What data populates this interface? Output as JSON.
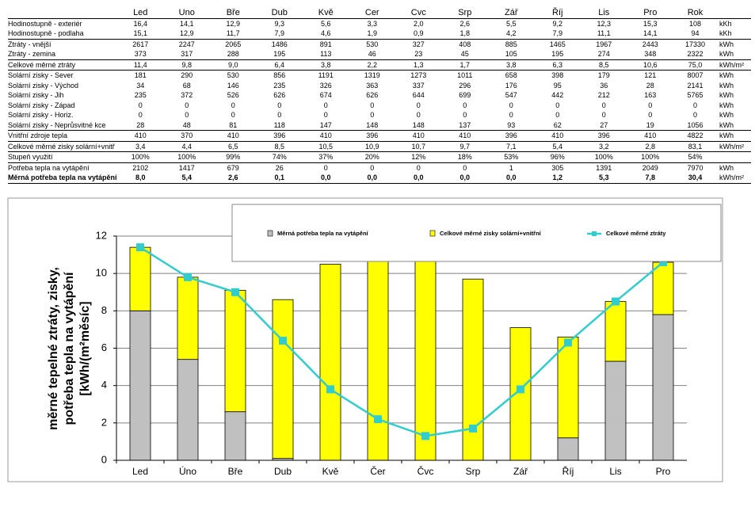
{
  "table": {
    "header": [
      "Led",
      "Uno",
      "Bře",
      "Dub",
      "Kvě",
      "Cer",
      "Cvc",
      "Srp",
      "Zář",
      "Říj",
      "Lis",
      "Pro",
      "Rok"
    ],
    "rows": [
      {
        "label": "Hodinostupně - exteriér",
        "cells": [
          "16,4",
          "14,1",
          "12,9",
          "9,3",
          "5,6",
          "3,3",
          "2,0",
          "2,6",
          "5,5",
          "9,2",
          "12,3",
          "15,3"
        ],
        "total": "108",
        "unit": "kKh"
      },
      {
        "label": "Hodinostupně - podlaha",
        "cells": [
          "15,1",
          "12,9",
          "11,7",
          "7,9",
          "4,6",
          "1,9",
          "0,9",
          "1,8",
          "4,2",
          "7,9",
          "11,1",
          "14,1"
        ],
        "total": "94",
        "unit": "kKh"
      },
      {
        "label": "Ztráty - vnější",
        "cells": [
          "2617",
          "2247",
          "2065",
          "1486",
          "891",
          "530",
          "327",
          "408",
          "885",
          "1465",
          "1967",
          "2443"
        ],
        "total": "17330",
        "unit": "kWh"
      },
      {
        "label": "Ztráty - zemina",
        "cells": [
          "373",
          "317",
          "288",
          "195",
          "113",
          "46",
          "23",
          "45",
          "105",
          "195",
          "274",
          "348"
        ],
        "total": "2322",
        "unit": "kWh"
      },
      {
        "label": "Celkové měrné ztráty",
        "cells": [
          "11,4",
          "9,8",
          "9,0",
          "6,4",
          "3,8",
          "2,2",
          "1,3",
          "1,7",
          "3,8",
          "6,3",
          "8,5",
          "10,6"
        ],
        "total": "75,0",
        "unit": "kWh/m²"
      },
      {
        "label": "Solární zisky - Sever",
        "cells": [
          "181",
          "290",
          "530",
          "856",
          "1191",
          "1319",
          "1273",
          "1011",
          "658",
          "398",
          "179",
          "121"
        ],
        "total": "8007",
        "unit": "kWh"
      },
      {
        "label": "Solární zisky - Východ",
        "cells": [
          "34",
          "68",
          "146",
          "235",
          "326",
          "363",
          "337",
          "296",
          "176",
          "95",
          "36",
          "28"
        ],
        "total": "2141",
        "unit": "kWh"
      },
      {
        "label": "Solární zisky - Jih",
        "cells": [
          "235",
          "372",
          "526",
          "626",
          "674",
          "626",
          "644",
          "699",
          "547",
          "442",
          "212",
          "163"
        ],
        "total": "5765",
        "unit": "kWh"
      },
      {
        "label": "Solární zisky - Západ",
        "cells": [
          "0",
          "0",
          "0",
          "0",
          "0",
          "0",
          "0",
          "0",
          "0",
          "0",
          "0",
          "0"
        ],
        "total": "0",
        "unit": "kWh"
      },
      {
        "label": "Solární zisky - Horiz.",
        "cells": [
          "0",
          "0",
          "0",
          "0",
          "0",
          "0",
          "0",
          "0",
          "0",
          "0",
          "0",
          "0"
        ],
        "total": "0",
        "unit": "kWh"
      },
      {
        "label": "Solární zisky - Neprůsvitné kce",
        "cells": [
          "28",
          "48",
          "81",
          "118",
          "147",
          "148",
          "148",
          "137",
          "93",
          "62",
          "27",
          "19"
        ],
        "total": "1056",
        "unit": "kWh"
      },
      {
        "label": "Vnitřní zdroje tepla",
        "cells": [
          "410",
          "370",
          "410",
          "396",
          "410",
          "396",
          "410",
          "410",
          "396",
          "410",
          "396",
          "410"
        ],
        "total": "4822",
        "unit": "kWh"
      },
      {
        "label": "Celkové měrné zisky solární+vnitř",
        "cells": [
          "3,4",
          "4,4",
          "6,5",
          "8,5",
          "10,5",
          "10,9",
          "10,7",
          "9,7",
          "7,1",
          "5,4",
          "3,2",
          "2,8"
        ],
        "total": "83,1",
        "unit": "kWh/m²"
      },
      {
        "label": "Stupeň využití",
        "cells": [
          "100%",
          "100%",
          "99%",
          "74%",
          "37%",
          "20%",
          "12%",
          "18%",
          "53%",
          "96%",
          "100%",
          "100%"
        ],
        "total": "54%"
      },
      {
        "label": "Potřeba tepla na vytápění",
        "cells": [
          "2102",
          "1417",
          "679",
          "26",
          "0",
          "0",
          "0",
          "0",
          "1",
          "305",
          "1391",
          "2049"
        ],
        "total": "7970",
        "unit": "kWh"
      },
      {
        "label": "Měrná potřeba tepla na vytápění",
        "cells": [
          "8,0",
          "5,4",
          "2,6",
          "0,1",
          "0,0",
          "0,0",
          "0,0",
          "0,0",
          "0,0",
          "1,2",
          "5,3",
          "7,8"
        ],
        "total": "30,4",
        "unit": "kWh/m²",
        "bold": true
      }
    ]
  },
  "chart_data": {
    "type": "bar",
    "stacked": true,
    "y_label": [
      "měrné tepelné ztráty, zisky,",
      "potřeba tepla na vytápění",
      "[kWh/(m²měsíc]"
    ],
    "categories": [
      "Led",
      "Úno",
      "Bře",
      "Dub",
      "Kvě",
      "Čer",
      "Čvc",
      "Srp",
      "Zář",
      "Říj",
      "Lis",
      "Pro"
    ],
    "series": [
      {
        "name": "Měrná potřeba tepla na vytápění",
        "type": "bar",
        "color": "#c0c0c0",
        "values": [
          8.0,
          5.4,
          2.6,
          0.1,
          0,
          0,
          0,
          0,
          0,
          1.2,
          5.3,
          7.8
        ]
      },
      {
        "name": "Celkové měrné zisky solární+vnitřní",
        "type": "bar",
        "color": "#ffff00",
        "values": [
          3.4,
          4.4,
          6.5,
          8.5,
          10.5,
          10.9,
          10.7,
          9.7,
          7.1,
          5.4,
          3.2,
          2.8
        ]
      },
      {
        "name": "Celkové měrné ztráty",
        "type": "line",
        "color": "#33cccc",
        "values": [
          11.4,
          9.8,
          9.0,
          6.4,
          3.8,
          2.2,
          1.3,
          1.7,
          3.8,
          6.3,
          8.5,
          10.6
        ]
      }
    ],
    "ylim": [
      0,
      12
    ],
    "yticks": [
      0,
      2,
      4,
      6,
      8,
      10,
      12
    ],
    "grid": true
  }
}
